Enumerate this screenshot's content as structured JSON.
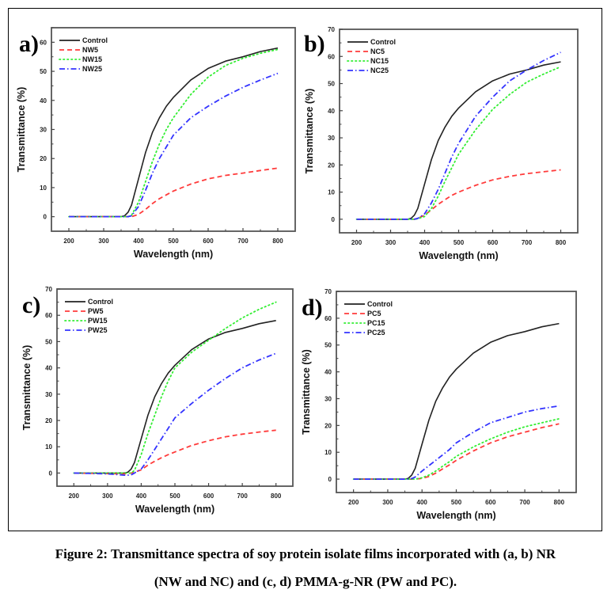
{
  "figure": {
    "caption_line1": "Figure 2: Transmittance spectra of soy protein isolate films incorporated with (a, b) NR",
    "caption_line2": "(NW and NC) and (c, d) PMMA-g-NR (PW and PC)."
  },
  "colors": {
    "Control": "#222222",
    "5": "#ff3b3b",
    "15": "#33ee33",
    "25": "#3333ff"
  },
  "chart_data": [
    {
      "panel": "a)",
      "type": "line",
      "xlabel": "Wavelength (nm)",
      "ylabel": "Transmittance (%)",
      "xlim": [
        150,
        850
      ],
      "ylim": [
        -5,
        65
      ],
      "xticks": [
        200,
        300,
        400,
        500,
        600,
        700,
        800
      ],
      "yticks": [
        0,
        10,
        20,
        30,
        40,
        50,
        60
      ],
      "legend": "top-left",
      "x": [
        200,
        300,
        350,
        360,
        370,
        380,
        400,
        420,
        440,
        460,
        480,
        500,
        550,
        600,
        650,
        700,
        750,
        800
      ],
      "series": [
        {
          "name": "Control",
          "style": "solid",
          "color_key": "Control",
          "values": [
            0,
            0,
            0,
            0.3,
            1.5,
            4,
            13,
            22,
            29,
            34,
            38,
            41,
            47,
            51,
            53.5,
            55,
            56.8,
            58
          ]
        },
        {
          "name": "NW5",
          "style": "dashed",
          "color_key": "5",
          "values": [
            0,
            0,
            0,
            0,
            0,
            0,
            0.8,
            2.5,
            4.5,
            6.2,
            7.5,
            8.8,
            11.2,
            13,
            14.2,
            15,
            15.9,
            16.7
          ]
        },
        {
          "name": "NW15",
          "style": "dotted",
          "color_key": "15",
          "values": [
            0,
            0,
            0,
            0,
            0,
            0.5,
            5,
            12,
            19,
            25,
            30,
            34,
            42,
            48,
            52,
            54.5,
            56.2,
            57.5
          ]
        },
        {
          "name": "NW25",
          "style": "dashdot",
          "color_key": "25",
          "values": [
            0,
            0,
            0,
            0,
            0,
            0.3,
            3.5,
            9,
            15,
            20,
            24,
            28,
            34,
            38,
            41.5,
            44.5,
            47,
            49.3
          ]
        }
      ]
    },
    {
      "panel": "b)",
      "type": "line",
      "xlabel": "Wavelength (nm)",
      "ylabel": "Transmittance (%)",
      "xlim": [
        150,
        850
      ],
      "ylim": [
        -5,
        70
      ],
      "xticks": [
        200,
        300,
        400,
        500,
        600,
        700,
        800
      ],
      "yticks": [
        0,
        10,
        20,
        30,
        40,
        50,
        60,
        70
      ],
      "legend": "top-left",
      "x": [
        200,
        300,
        350,
        360,
        370,
        380,
        400,
        420,
        440,
        460,
        480,
        500,
        550,
        600,
        650,
        700,
        750,
        800
      ],
      "series": [
        {
          "name": "Control",
          "style": "solid",
          "color_key": "Control",
          "values": [
            0,
            0,
            0,
            0.3,
            1.5,
            4,
            13,
            22,
            29,
            34,
            38,
            41,
            47,
            51,
            53.5,
            55,
            56.8,
            58
          ]
        },
        {
          "name": "NC5",
          "style": "dashed",
          "color_key": "5",
          "values": [
            0,
            0,
            0,
            0,
            0,
            0.3,
            1.5,
            3.5,
            5.5,
            7.2,
            8.8,
            10,
            12.5,
            14.5,
            15.8,
            16.8,
            17.5,
            18.2
          ]
        },
        {
          "name": "NC15",
          "style": "dotted",
          "color_key": "15",
          "values": [
            0,
            0,
            0,
            0,
            0,
            0.2,
            1,
            4,
            8.5,
            14,
            19,
            24,
            33,
            40.5,
            46,
            50.5,
            53.5,
            56.2
          ]
        },
        {
          "name": "NC25",
          "style": "dashdot",
          "color_key": "25",
          "values": [
            0,
            0,
            0,
            0,
            0,
            0.3,
            2,
            6,
            11,
            17,
            23,
            28,
            38,
            45,
            51,
            55,
            58.5,
            61.5
          ]
        }
      ]
    },
    {
      "panel": "c)",
      "type": "line",
      "xlabel": "Wavelength (nm)",
      "ylabel": "Transmittance (%)",
      "xlim": [
        150,
        850
      ],
      "ylim": [
        -5,
        70
      ],
      "xticks": [
        200,
        300,
        400,
        500,
        600,
        700,
        800
      ],
      "yticks": [
        0,
        10,
        20,
        30,
        40,
        50,
        60,
        70
      ],
      "legend": "top-left",
      "x": [
        200,
        300,
        350,
        360,
        370,
        380,
        400,
        420,
        440,
        460,
        480,
        500,
        550,
        600,
        650,
        700,
        750,
        800
      ],
      "series": [
        {
          "name": "Control",
          "style": "solid",
          "color_key": "Control",
          "values": [
            0,
            0,
            0,
            0.3,
            1.5,
            4,
            13,
            22,
            29,
            34,
            38,
            41,
            47,
            51,
            53.5,
            55,
            56.8,
            58
          ]
        },
        {
          "name": "PW5",
          "style": "dashed",
          "color_key": "5",
          "values": [
            0,
            -0.2,
            -0.3,
            -0.2,
            0,
            0.3,
            1.2,
            3,
            4.5,
            5.8,
            7,
            8,
            10.5,
            12.3,
            13.8,
            14.8,
            15.6,
            16.3
          ]
        },
        {
          "name": "PW15",
          "style": "dotted",
          "color_key": "15",
          "values": [
            0,
            0,
            0,
            0,
            0,
            1,
            7,
            15,
            22,
            29,
            35,
            40,
            46,
            50.5,
            55,
            59,
            62.3,
            65
          ]
        },
        {
          "name": "PW25",
          "style": "dashdot",
          "color_key": "25",
          "values": [
            0,
            -0.3,
            -0.8,
            -0.8,
            -0.7,
            0,
            1.5,
            5,
            9,
            13,
            17,
            21,
            26.5,
            31.5,
            36,
            40,
            43,
            45.5
          ]
        }
      ]
    },
    {
      "panel": "d)",
      "type": "line",
      "xlabel": "Wavelength (nm)",
      "ylabel": "Transmittance (%)",
      "xlim": [
        150,
        850
      ],
      "ylim": [
        -5,
        70
      ],
      "xticks": [
        200,
        300,
        400,
        500,
        600,
        700,
        800
      ],
      "yticks": [
        0,
        10,
        20,
        30,
        40,
        50,
        60,
        70
      ],
      "legend": "top-left",
      "x": [
        200,
        300,
        350,
        360,
        370,
        380,
        400,
        420,
        440,
        460,
        480,
        500,
        550,
        600,
        650,
        700,
        750,
        800
      ],
      "series": [
        {
          "name": "Control",
          "style": "solid",
          "color_key": "Control",
          "values": [
            0,
            0,
            0,
            0.3,
            1.5,
            4,
            13,
            22,
            29,
            34,
            38,
            41,
            47,
            51,
            53.5,
            55,
            56.8,
            58
          ]
        },
        {
          "name": "PC5",
          "style": "dashed",
          "color_key": "5",
          "values": [
            0,
            0,
            0,
            0,
            0,
            0,
            0.3,
            1,
            2.2,
            3.8,
            5.3,
            7,
            10.5,
            13.5,
            15.8,
            17.5,
            19.2,
            20.6
          ]
        },
        {
          "name": "PC15",
          "style": "dotted",
          "color_key": "15",
          "values": [
            0,
            0,
            0,
            0,
            0,
            0,
            0.5,
            1.5,
            3,
            4.8,
            6.5,
            8.5,
            12,
            15,
            17.5,
            19.5,
            21,
            22.5
          ]
        },
        {
          "name": "PC25",
          "style": "dashdot",
          "color_key": "25",
          "values": [
            0,
            0,
            0,
            0,
            0.2,
            0.8,
            3,
            5,
            7,
            9,
            11,
            13.5,
            17.5,
            21,
            23,
            25,
            26.3,
            27.3
          ]
        }
      ]
    }
  ]
}
